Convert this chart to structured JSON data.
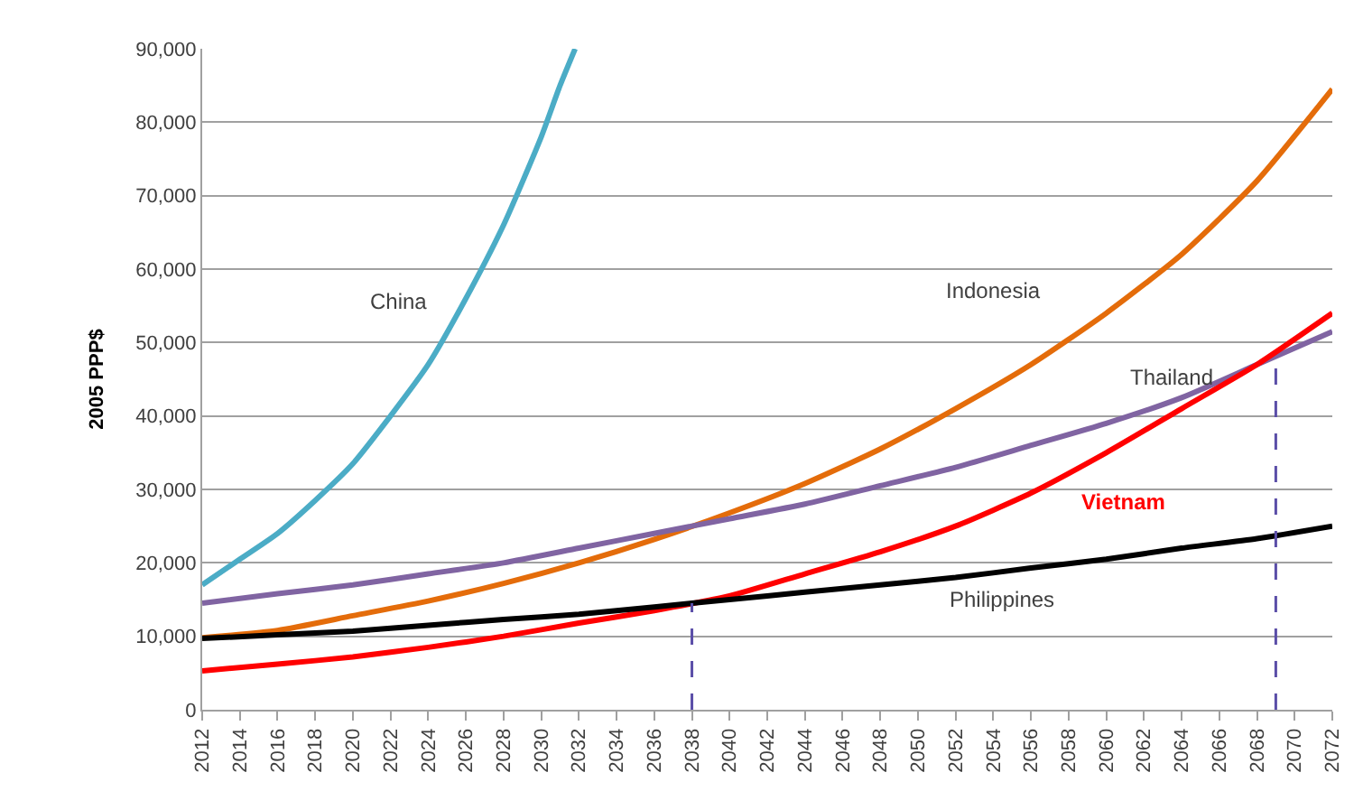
{
  "chart_data": {
    "type": "line",
    "ylabel": "2005 PPP$",
    "xlim": [
      2012,
      2072
    ],
    "xticks": [
      2012,
      2014,
      2016,
      2018,
      2020,
      2022,
      2024,
      2026,
      2028,
      2030,
      2032,
      2034,
      2036,
      2038,
      2040,
      2042,
      2044,
      2046,
      2048,
      2050,
      2052,
      2054,
      2056,
      2058,
      2060,
      2062,
      2064,
      2066,
      2068,
      2070,
      2072
    ],
    "ylim": [
      0,
      90000
    ],
    "yticks": [
      {
        "value": 0,
        "label": "0"
      },
      {
        "value": 10000,
        "label": "10,000"
      },
      {
        "value": 20000,
        "label": "20,000"
      },
      {
        "value": 30000,
        "label": "30,000"
      },
      {
        "value": 40000,
        "label": "40,000"
      },
      {
        "value": 50000,
        "label": "50,000"
      },
      {
        "value": 60000,
        "label": "60,000"
      },
      {
        "value": 70000,
        "label": "70,000"
      },
      {
        "value": 80000,
        "label": "80,000"
      },
      {
        "value": 90000,
        "label": "90,000"
      }
    ],
    "grid": "y",
    "legend": false,
    "marker": "none",
    "x": [
      2012,
      2016,
      2020,
      2024,
      2028,
      2032,
      2036,
      2040,
      2044,
      2048,
      2052,
      2056,
      2060,
      2064,
      2068,
      2072
    ],
    "series": [
      {
        "name": "China",
        "color": "#4bacc6",
        "x": [
          2012,
          2014,
          2016,
          2018,
          2020,
          2022,
          2024,
          2026,
          2028,
          2030,
          2031,
          2031.8
        ],
        "values": [
          17000,
          20500,
          24000,
          28500,
          33500,
          40000,
          47000,
          56000,
          66000,
          78000,
          85000,
          90000
        ]
      },
      {
        "name": "Indonesia",
        "color": "#e46c0a",
        "values": [
          9800,
          10800,
          12800,
          14800,
          17200,
          20000,
          23200,
          26800,
          30800,
          35500,
          41000,
          47000,
          54000,
          62000,
          72000,
          84500
        ]
      },
      {
        "name": "Thailand",
        "color": "#8064a2",
        "values": [
          14500,
          15800,
          17000,
          18500,
          20000,
          22000,
          24000,
          26000,
          28000,
          30500,
          33000,
          36000,
          39000,
          42500,
          47000,
          51500
        ]
      },
      {
        "name": "Vietnam",
        "color": "#ff0000",
        "values": [
          5300,
          6200,
          7200,
          8500,
          10000,
          11800,
          13500,
          15500,
          18500,
          21500,
          25000,
          29500,
          35000,
          41000,
          47000,
          54000
        ]
      },
      {
        "name": "Philippines",
        "color": "#000000",
        "values": [
          9700,
          10200,
          10700,
          11500,
          12300,
          13000,
          14000,
          15000,
          16000,
          17000,
          18000,
          19300,
          20500,
          22000,
          23300,
          25000
        ]
      },
      {
        "color": "#5b4ea8",
        "line_style": "dashed",
        "x": [
          2038,
          2038
        ],
        "values": [
          0,
          14500
        ]
      },
      {
        "color": "#5b4ea8",
        "line_style": "dashed",
        "x": [
          2069,
          2069
        ],
        "values": [
          0,
          48000
        ]
      }
    ]
  }
}
